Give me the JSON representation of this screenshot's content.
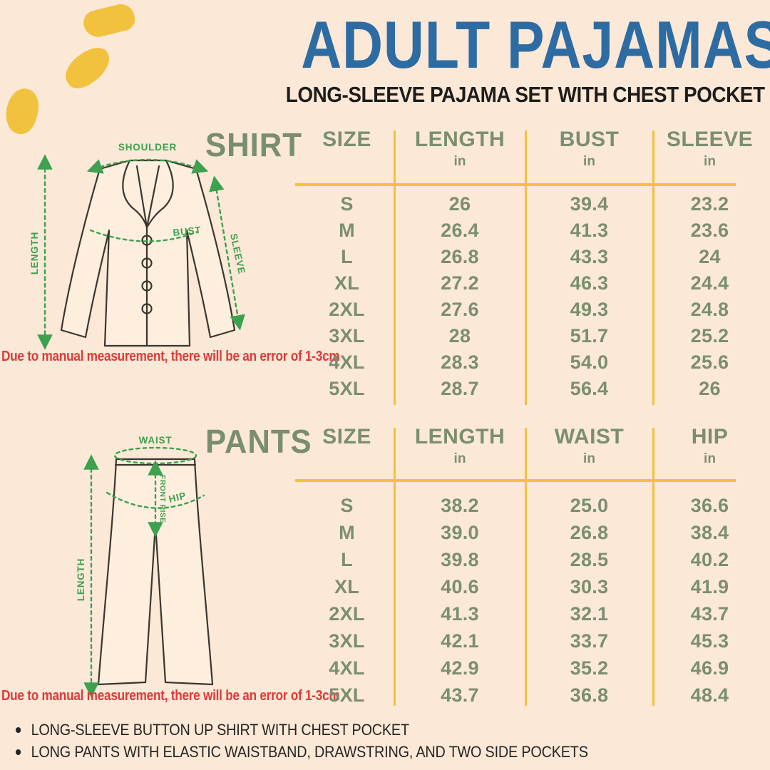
{
  "page": {
    "title": "ADULT PAJAMAS",
    "subtitle": "LONG-SLEEVE PAJAMA SET WITH CHEST POCKET",
    "measurement_note": "Due to manual measurement, there will be an error of 1-3cm",
    "bullets": [
      "LONG-SLEEVE BUTTON UP SHIRT WITH CHEST POCKET",
      "LONG PANTS WITH ELASTIC WAISTBAND, DRAWSTRING, AND TWO SIDE POCKETS"
    ]
  },
  "colors": {
    "background": "#fbe8d7",
    "title_blue": "#2d6ba3",
    "sage_green": "#7b8f6c",
    "bright_green": "#3da14f",
    "accent_yellow": "#f2c13d",
    "alert_red": "#de3a3a"
  },
  "diagrams": {
    "shirt": {
      "labels": {
        "shoulder": "SHOULDER",
        "length": "LENGTH",
        "bust": "BUST",
        "sleeve": "SLEEVE"
      }
    },
    "pants": {
      "labels": {
        "waist": "WAIST",
        "front_rise": "FRONT RISE",
        "hip": "HIP",
        "length": "LENGTH"
      }
    }
  },
  "chart_data": [
    {
      "type": "table",
      "title": "SHIRT",
      "columns": [
        "SIZE",
        "LENGTH",
        "BUST",
        "SLEEVE"
      ],
      "units": [
        "",
        "in",
        "in",
        "in"
      ],
      "rows": [
        [
          "S",
          "26",
          "39.4",
          "23.2"
        ],
        [
          "M",
          "26.4",
          "41.3",
          "23.6"
        ],
        [
          "L",
          "26.8",
          "43.3",
          "24"
        ],
        [
          "XL",
          "27.2",
          "46.3",
          "24.4"
        ],
        [
          "2XL",
          "27.6",
          "49.3",
          "24.8"
        ],
        [
          "3XL",
          "28",
          "51.7",
          "25.2"
        ],
        [
          "4XL",
          "28.3",
          "54.0",
          "25.6"
        ],
        [
          "5XL",
          "28.7",
          "56.4",
          "26"
        ]
      ]
    },
    {
      "type": "table",
      "title": "PANTS",
      "columns": [
        "SIZE",
        "LENGTH",
        "WAIST",
        "HIP"
      ],
      "units": [
        "",
        "in",
        "in",
        "in"
      ],
      "rows": [
        [
          "S",
          "38.2",
          "25.0",
          "36.6"
        ],
        [
          "M",
          "39.0",
          "26.8",
          "38.4"
        ],
        [
          "L",
          "39.8",
          "28.5",
          "40.2"
        ],
        [
          "XL",
          "40.6",
          "30.3",
          "41.9"
        ],
        [
          "2XL",
          "41.3",
          "32.1",
          "43.7"
        ],
        [
          "3XL",
          "42.1",
          "33.7",
          "45.3"
        ],
        [
          "4XL",
          "42.9",
          "35.2",
          "46.9"
        ],
        [
          "5XL",
          "43.7",
          "36.8",
          "48.4"
        ]
      ]
    }
  ]
}
